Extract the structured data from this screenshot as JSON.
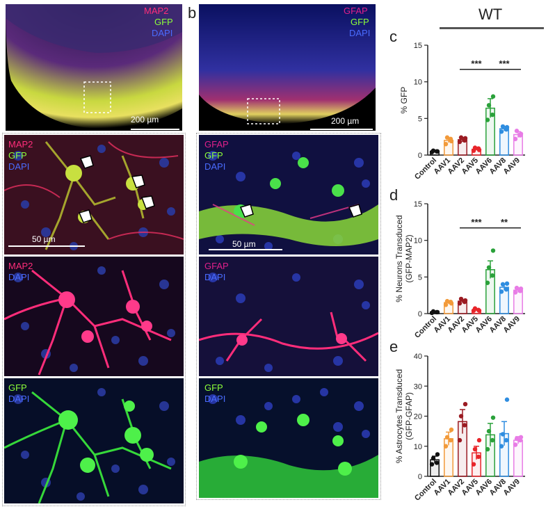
{
  "panel_letters": {
    "b": "b",
    "c": "c",
    "d": "d",
    "e": "e"
  },
  "wt_label": "WT",
  "colors": {
    "Control": "#111111",
    "AAV1": "#f29a3a",
    "AAV2": "#9b1b22",
    "AAV5": "#e8252a",
    "AAV6": "#2aa13a",
    "AAV8": "#2f8de0",
    "AAV9": "#e87ce6",
    "map2": "#ff2d7a",
    "gfap": "#e0208a",
    "gfp": "#7dff3a",
    "dapi": "#3a5cff"
  },
  "panel_a": {
    "overview": {
      "labels": [
        "MAP2",
        "GFP",
        "DAPI"
      ],
      "scale": "200 µm"
    },
    "merge": {
      "labels": [
        "MAP2",
        "GFP",
        "DAPI"
      ],
      "scale": "50 µm"
    },
    "red": {
      "labels": [
        "MAP2",
        "DAPI"
      ]
    },
    "green": {
      "labels": [
        "GFP",
        "DAPI"
      ]
    }
  },
  "panel_b": {
    "overview": {
      "labels": [
        "GFAP",
        "GFP",
        "DAPI"
      ],
      "scale": "200 µm"
    },
    "merge": {
      "labels": [
        "GFAP",
        "GFP",
        "DAPI"
      ],
      "scale": "50 µm"
    },
    "red": {
      "labels": [
        "GFAP",
        "DAPI"
      ]
    },
    "green": {
      "labels": [
        "GFP",
        "DAPI"
      ]
    }
  },
  "chart_data": [
    {
      "id": "c",
      "type": "bar",
      "categories": [
        "Control",
        "AAV1",
        "AAV2",
        "AAV5",
        "AAV6",
        "AAV8",
        "AAV9"
      ],
      "values": [
        0.5,
        2.0,
        2.1,
        0.8,
        6.4,
        3.6,
        2.8
      ],
      "errors": [
        0.1,
        0.3,
        0.3,
        0.15,
        1.3,
        0.3,
        0.4
      ],
      "points": [
        [
          0.4,
          0.5,
          0.6,
          0.5
        ],
        [
          1.5,
          2.2,
          2.4,
          1.9
        ],
        [
          1.8,
          2.0,
          2.4,
          2.3
        ],
        [
          0.6,
          0.9,
          1.0,
          0.7
        ],
        [
          4.8,
          5.5,
          6.8,
          8.0
        ],
        [
          3.2,
          3.5,
          3.9,
          3.8
        ],
        [
          2.2,
          2.7,
          3.3,
          2.9
        ]
      ],
      "ylabel": "% GFP",
      "ylim": [
        0,
        15
      ],
      "yticks": [
        0,
        5,
        10,
        15
      ],
      "significance": [
        {
          "from": "AAV2",
          "to": "AAV6",
          "label": "***"
        },
        {
          "from": "AAV6",
          "to": "AAV9",
          "label": "***"
        }
      ]
    },
    {
      "id": "d",
      "type": "bar",
      "categories": [
        "Control",
        "AAV1",
        "AAV2",
        "AAV5",
        "AAV6",
        "AAV8",
        "AAV9"
      ],
      "values": [
        0.2,
        1.5,
        1.7,
        0.5,
        6.0,
        3.6,
        3.2
      ],
      "errors": [
        0.05,
        0.2,
        0.2,
        0.1,
        1.2,
        0.4,
        0.3
      ],
      "points": [
        [
          0.1,
          0.2,
          0.3,
          0.2
        ],
        [
          1.2,
          1.6,
          1.7,
          1.4
        ],
        [
          1.4,
          1.6,
          2.0,
          1.8
        ],
        [
          0.4,
          0.5,
          0.7,
          0.4
        ],
        [
          4.2,
          5.2,
          6.3,
          8.6
        ],
        [
          3.0,
          3.3,
          4.0,
          4.1
        ],
        [
          2.9,
          3.1,
          3.5,
          3.4
        ]
      ],
      "ylabel": "% Neurons Transduced\n(GFP-MAP2)",
      "ylim": [
        0,
        15
      ],
      "yticks": [
        0,
        5,
        10,
        15
      ],
      "significance": [
        {
          "from": "AAV2",
          "to": "AAV6",
          "label": "***"
        },
        {
          "from": "AAV6",
          "to": "AAV9",
          "label": "**"
        }
      ]
    },
    {
      "id": "e",
      "type": "bar",
      "categories": [
        "Control",
        "AAV1",
        "AAV2",
        "AAV5",
        "AAV6",
        "AAV8",
        "AAV9"
      ],
      "values": [
        5.5,
        12.5,
        18.2,
        7.8,
        13.8,
        14.2,
        12.0
      ],
      "errors": [
        1.2,
        2.2,
        4.0,
        2.2,
        3.8,
        4.0,
        1.2
      ],
      "points": [
        [
          4.0,
          4.5,
          6.0,
          7.3
        ],
        [
          10.0,
          12.0,
          13.0,
          15.5
        ],
        [
          12.0,
          17.0,
          20.0,
          24.0
        ],
        [
          4.0,
          6.5,
          9.0,
          12.0
        ],
        [
          9.0,
          12.0,
          15.0,
          19.5
        ],
        [
          10.0,
          12.0,
          14.0,
          25.5
        ],
        [
          10.5,
          12.0,
          12.5,
          13.0
        ]
      ],
      "ylabel": "% Astrocytes Transduced\n(GFP-GFAP)",
      "ylim": [
        0,
        40
      ],
      "yticks": [
        0,
        10,
        20,
        30,
        40
      ],
      "significance": []
    }
  ]
}
